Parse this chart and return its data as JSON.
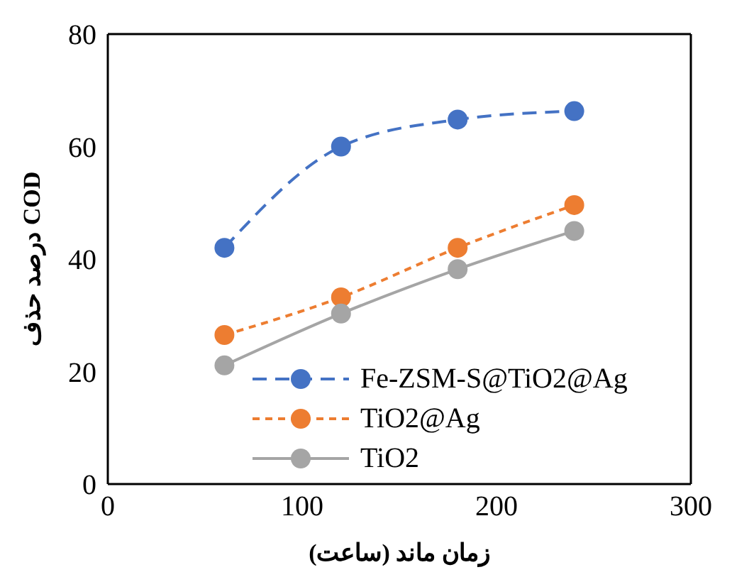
{
  "chart_data": {
    "type": "line",
    "xlabel": "زمان ماند (ساعت)",
    "ylabel": "درصد حذف COD",
    "x": [
      60,
      120,
      180,
      240
    ],
    "series": [
      {
        "name": "Fe-ZSM-S@TiO2@Ag",
        "color": "#4472c4",
        "values": [
          42,
          60,
          64.8,
          66.3
        ],
        "line_style": "dashed"
      },
      {
        "name": "TiO2@Ag",
        "color": "#ed7d31",
        "values": [
          26.5,
          33.2,
          42,
          49.6
        ],
        "line_style": "dotted"
      },
      {
        "name": "TiO2",
        "color": "#a5a5a5",
        "values": [
          21.1,
          30.3,
          38.2,
          45
        ],
        "line_style": "solid"
      }
    ],
    "xlim": [
      0,
      300
    ],
    "xticks": [
      0,
      100,
      200,
      300
    ],
    "ylim": [
      0,
      80
    ],
    "yticks": [
      0,
      20,
      40,
      60,
      80
    ],
    "grid": false,
    "legend": "bottom right",
    "marker": "circle"
  }
}
